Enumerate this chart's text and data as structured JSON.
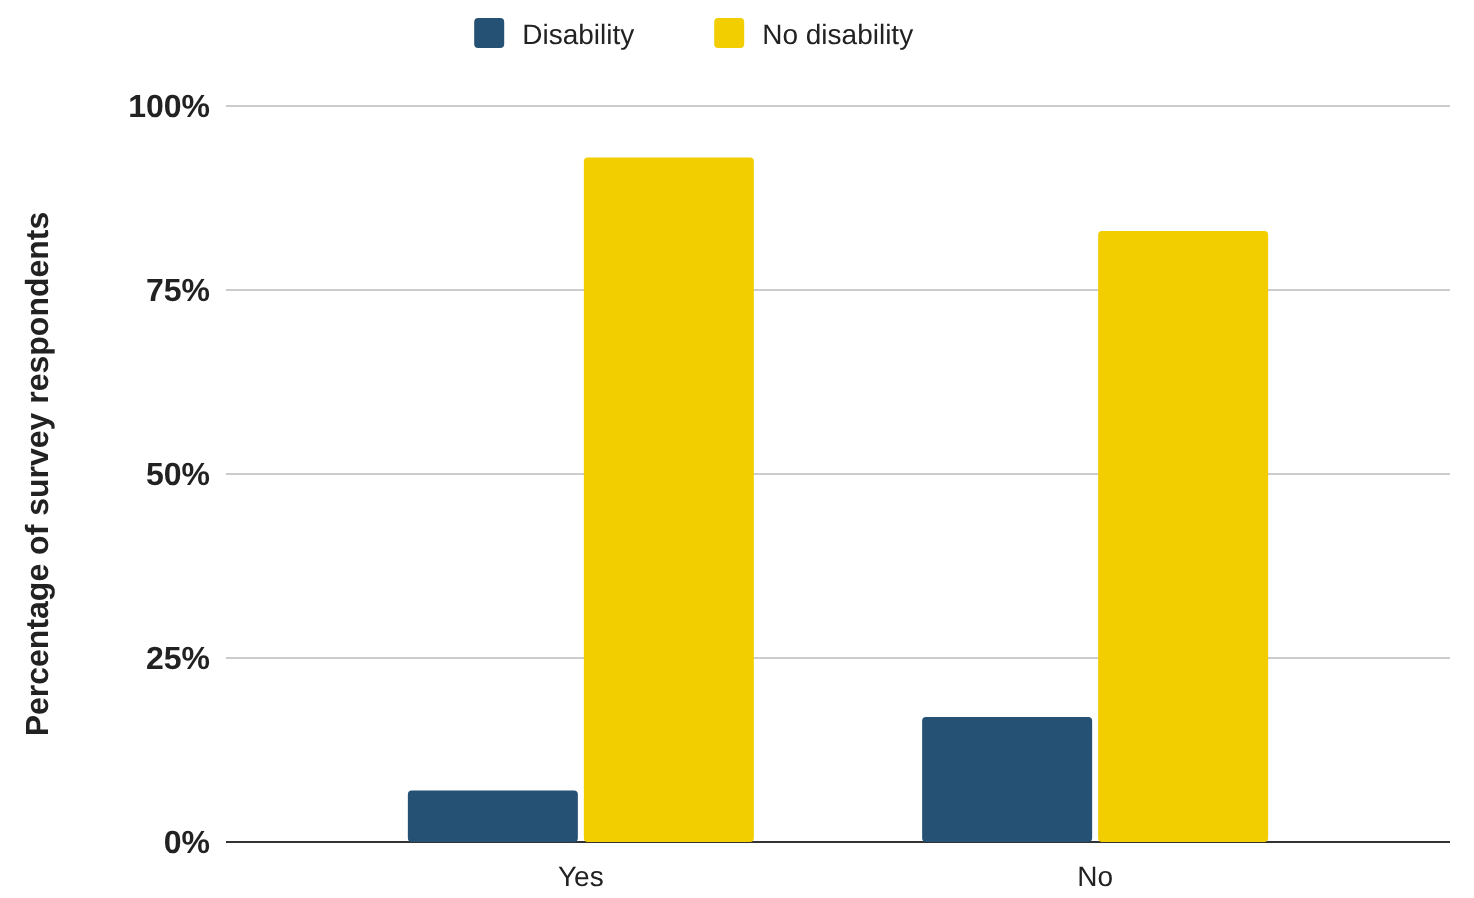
{
  "chart_data": {
    "type": "bar",
    "ylabel": "Percentage of survey respondents",
    "categories": [
      "Yes",
      "No"
    ],
    "series": [
      {
        "name": "Disability",
        "color": "#245174",
        "values": [
          7,
          17
        ]
      },
      {
        "name": "No disability",
        "color": "#f2cd00",
        "values": [
          93,
          83
        ]
      }
    ],
    "ylim": [
      0,
      100
    ],
    "yticks": [
      {
        "value": 0,
        "label": "0%"
      },
      {
        "value": 25,
        "label": "25%"
      },
      {
        "value": 50,
        "label": "50%"
      },
      {
        "value": 75,
        "label": "75%"
      },
      {
        "value": 100,
        "label": "100%"
      }
    ],
    "grid": "y",
    "legend": "top"
  }
}
